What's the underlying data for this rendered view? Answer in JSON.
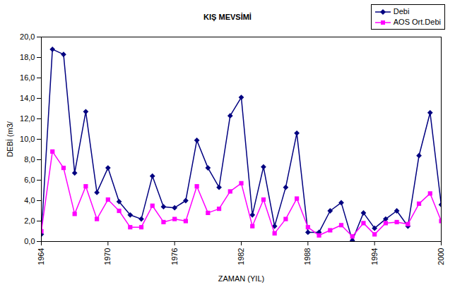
{
  "chart_data": {
    "type": "line",
    "title": "KIŞ MEVSİMİ",
    "x_label": "ZAMAN (YIL)",
    "y_label": "DEBİ (m3/",
    "x": [
      1964,
      1965,
      1966,
      1967,
      1968,
      1969,
      1970,
      1971,
      1972,
      1973,
      1974,
      1975,
      1976,
      1977,
      1978,
      1979,
      1980,
      1981,
      1982,
      1983,
      1984,
      1985,
      1986,
      1987,
      1988,
      1989,
      1990,
      1991,
      1992,
      1993,
      1994,
      1995,
      1996,
      1997,
      1998,
      1999,
      2000
    ],
    "series": [
      {
        "name": "Debi",
        "color": "#000080",
        "marker": "diamond",
        "values": [
          0.7,
          18.8,
          18.3,
          6.7,
          12.7,
          4.8,
          7.2,
          3.9,
          2.6,
          2.2,
          6.4,
          3.4,
          3.3,
          4.0,
          9.9,
          7.2,
          5.3,
          12.3,
          14.1,
          2.6,
          7.3,
          1.5,
          5.3,
          10.6,
          0.9,
          0.9,
          3.0,
          3.8,
          0.1,
          2.8,
          1.3,
          2.2,
          3.0,
          1.5,
          8.4,
          12.6,
          3.6
        ]
      },
      {
        "name": "AOS Ort.Debi",
        "color": "#ff00ff",
        "marker": "square",
        "values": [
          1.0,
          8.8,
          7.2,
          2.7,
          5.4,
          2.2,
          4.1,
          3.0,
          1.4,
          1.4,
          3.5,
          1.9,
          2.2,
          2.0,
          5.4,
          2.8,
          3.2,
          4.9,
          5.7,
          1.5,
          4.1,
          0.8,
          2.2,
          4.2,
          1.4,
          0.6,
          1.1,
          1.6,
          0.5,
          1.8,
          0.7,
          1.8,
          1.9,
          1.7,
          3.7,
          4.7,
          2.0
        ]
      }
    ],
    "xlim": [
      1964,
      2000
    ],
    "xticks": [
      1964,
      1970,
      1976,
      1982,
      1988,
      1994,
      2000
    ],
    "ylim": [
      0,
      20
    ],
    "yticks": [
      {
        "value": 0,
        "label": "0,0"
      },
      {
        "value": 2,
        "label": "2,0"
      },
      {
        "value": 4,
        "label": "4,0"
      },
      {
        "value": 6,
        "label": "6,0"
      },
      {
        "value": 8,
        "label": "8,0"
      },
      {
        "value": 10,
        "label": "10,0"
      },
      {
        "value": 12,
        "label": "12,0"
      },
      {
        "value": 14,
        "label": "14,0"
      },
      {
        "value": 16,
        "label": "16,0"
      },
      {
        "value": 18,
        "label": "18,0"
      },
      {
        "value": 20,
        "label": "20,0"
      }
    ],
    "grid": false,
    "legend": "top-right"
  }
}
